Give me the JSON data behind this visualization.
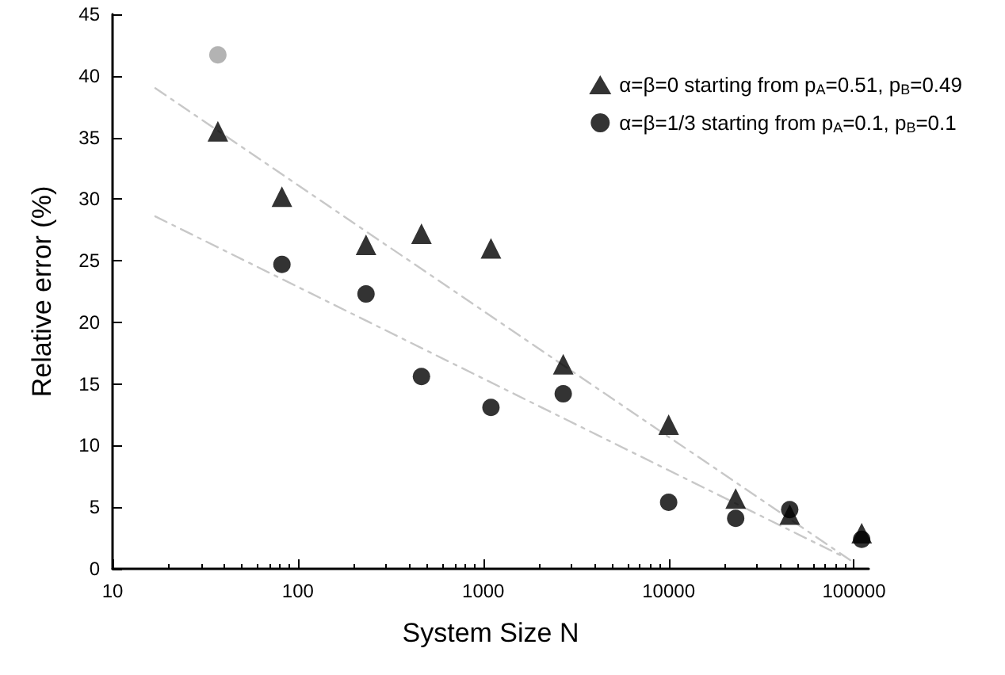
{
  "chart_data": {
    "type": "scatter",
    "xlabel": "System Size N",
    "ylabel": "Relative error (%)",
    "log": "x",
    "xlim": [
      10,
      120000
    ],
    "xticks": [
      10,
      100,
      1000,
      10000,
      100000
    ],
    "ylim": [
      0,
      45
    ],
    "yticks": [
      0,
      5,
      10,
      15,
      20,
      25,
      30,
      35,
      40,
      45
    ],
    "legend": "top right",
    "series": [
      {
        "name": "α=β=0 starting from p$_{A}$=0.51, p$_{B}$=0.49",
        "color": "#000000",
        "marker": "triangle",
        "x": [
          37,
          82,
          233,
          464,
          1100,
          2700,
          10000,
          23000,
          45000,
          110000
        ],
        "values": [
          35.5,
          30.2,
          26.3,
          27.2,
          26,
          16.6,
          11.7,
          5.7,
          4.4,
          2.9
        ]
      },
      {
        "name": "α=β=1/3 starting from p$_{A}$=0.1, p$_{B}$=0.1",
        "color": "#000000",
        "marker": "circle",
        "x": [
          82,
          233,
          464,
          1100,
          2700,
          10000,
          23000,
          45000,
          110000
        ],
        "values": [
          24.7,
          22.3,
          15.6,
          13.1,
          14.2,
          5.4,
          4.1,
          4.8,
          2.4
        ]
      },
      {
        "color": "#a0a0a0",
        "marker": "circle",
        "x": [
          37
        ],
        "values": [
          41.7
        ]
      },
      {
        "type": "line",
        "color": "#c8c8c8",
        "line_style": "dashed",
        "marker": "none",
        "x": [
          17,
          100000
        ],
        "values": [
          39,
          0.5
        ]
      },
      {
        "type": "line",
        "color": "#c8c8c8",
        "line_style": "dashed",
        "marker": "none",
        "x": [
          17,
          90000
        ],
        "values": [
          28.6,
          0.9
        ]
      }
    ]
  }
}
